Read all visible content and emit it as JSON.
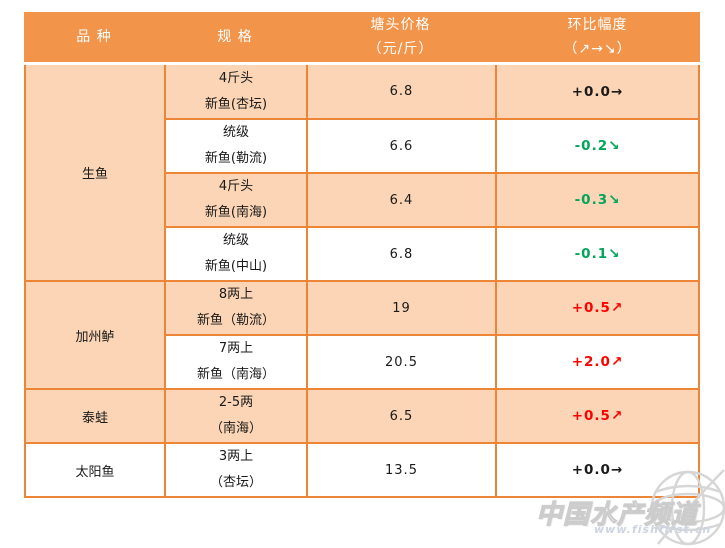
{
  "table": {
    "headers": [
      {
        "line1": "品  种",
        "line2": ""
      },
      {
        "line1": "规  格",
        "line2": ""
      },
      {
        "line1": "塘头价格",
        "line2": "（元/斤）"
      },
      {
        "line1": "环比幅度",
        "line2": "（↗→↘）"
      }
    ],
    "groups": [
      {
        "species": "生鱼",
        "shaded": true,
        "rows": [
          {
            "spec1": "4斤头",
            "spec2": "新鱼(杏坛)",
            "price": "6.8",
            "change": "+0.0→",
            "trend": "flat",
            "shaded": true
          },
          {
            "spec1": "统级",
            "spec2": "新鱼(勒流)",
            "price": "6.6",
            "change": "-0.2↘",
            "trend": "down",
            "shaded": false
          },
          {
            "spec1": "4斤头",
            "spec2": "新鱼(南海)",
            "price": "6.4",
            "change": "-0.3↘",
            "trend": "down",
            "shaded": true
          },
          {
            "spec1": "统级",
            "spec2": "新鱼(中山)",
            "price": "6.8",
            "change": "-0.1↘",
            "trend": "down",
            "shaded": false
          }
        ]
      },
      {
        "species": "加州鲈",
        "shaded": true,
        "rows": [
          {
            "spec1": "8两上",
            "spec2": "新鱼（勒流）",
            "price": "19",
            "change": "+0.5↗",
            "trend": "up",
            "shaded": true
          },
          {
            "spec1": "7两上",
            "spec2": "新鱼（南海）",
            "price": "20.5",
            "change": "+2.0↗",
            "trend": "up",
            "shaded": false
          }
        ]
      },
      {
        "species": "泰蛙",
        "shaded": true,
        "rows": [
          {
            "spec1": "2-5两",
            "spec2": "（南海）",
            "price": "6.5",
            "change": "+0.5↗",
            "trend": "up",
            "shaded": true
          }
        ]
      },
      {
        "species": "太阳鱼",
        "shaded": false,
        "rows": [
          {
            "spec1": "3两上",
            "spec2": "（杏坛）",
            "price": "13.5",
            "change": "+0.0→",
            "trend": "flat",
            "shaded": false
          }
        ]
      }
    ]
  },
  "watermark": {
    "title": "中国水产频道",
    "url": "www.fishfirst.cn"
  },
  "colors": {
    "header_bg": "#F2944A",
    "header_text": "#FFFFFF",
    "row_shade": "#FBD5B5",
    "row_plain": "#FFFFFF",
    "grid": "#ED8536",
    "trend_up": "#FF0000",
    "trend_down": "#00A65A",
    "trend_flat": "#1A1A1A"
  },
  "chart_data": {
    "type": "table",
    "columns": [
      "品种",
      "规格",
      "塘头价格（元/斤）",
      "环比幅度（↗→↘）"
    ],
    "rows": [
      [
        "生鱼",
        "4斤头 新鱼(杏坛)",
        6.8,
        "+0.0→"
      ],
      [
        "生鱼",
        "统级 新鱼(勒流)",
        6.6,
        "-0.2↘"
      ],
      [
        "生鱼",
        "4斤头 新鱼(南海)",
        6.4,
        "-0.3↘"
      ],
      [
        "生鱼",
        "统级 新鱼(中山)",
        6.8,
        "-0.1↘"
      ],
      [
        "加州鲈",
        "8两上 新鱼（勒流）",
        19,
        "+0.5↗"
      ],
      [
        "加州鲈",
        "7两上 新鱼（南海）",
        20.5,
        "+2.0↗"
      ],
      [
        "泰蛙",
        "2-5两（南海）",
        6.5,
        "+0.5↗"
      ],
      [
        "太阳鱼",
        "3两上（杏坛）",
        13.5,
        "+0.0→"
      ]
    ]
  }
}
